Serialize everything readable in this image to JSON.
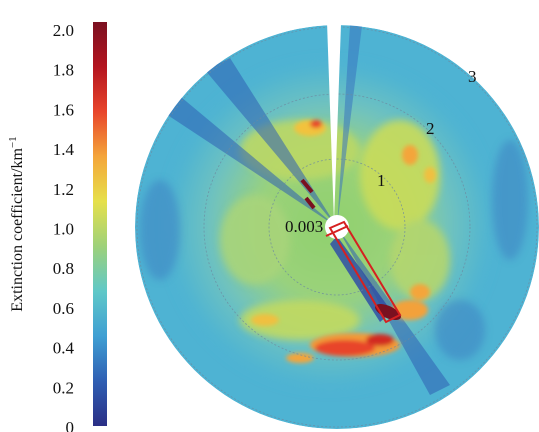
{
  "chart_data": {
    "type": "heatmap",
    "projection": "polar",
    "colorbar": {
      "label_main": "Extinction coefficient/km",
      "label_sup": "−1",
      "ticks": [
        "2.0",
        "1.8",
        "1.6",
        "1.4",
        "1.2",
        "1.0",
        "0.8",
        "0.6",
        "0.4",
        "0.2",
        "0"
      ],
      "range": [
        0,
        2.0
      ],
      "colors": [
        "#2b2f86",
        "#2f5fb3",
        "#3f9fd3",
        "#5fc8c8",
        "#9dd17a",
        "#e6e04a",
        "#f4a53a",
        "#e8452b",
        "#b4151f",
        "#7a1020"
      ]
    },
    "ring_labels": [
      "1",
      "2",
      "3"
    ],
    "center_label": "0.003",
    "annotation": {
      "shape": "rectangle",
      "color": "#d62020"
    }
  }
}
